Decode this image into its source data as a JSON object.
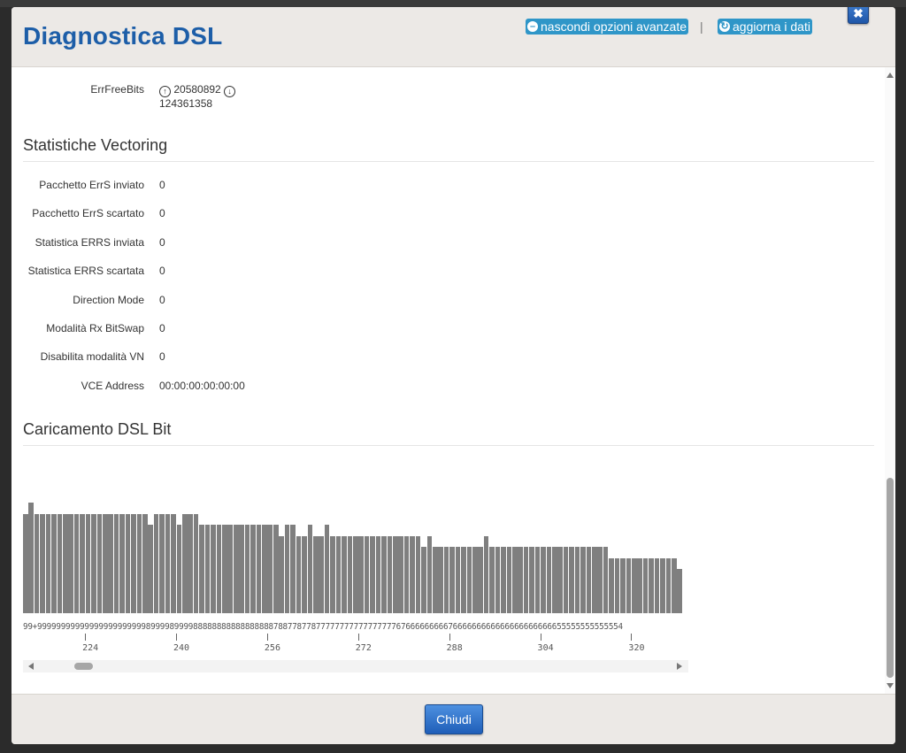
{
  "header": {
    "title": "Diagnostica DSL",
    "advanced_link": "nascondi opzioni avanzate",
    "refresh_link": "aggiorna i dati",
    "separator": "|",
    "close_icon": "✖"
  },
  "errfree": {
    "label": "ErrFreeBits",
    "up_value": "20580892",
    "down_value": "124361358",
    "up_icon": "arrow-up-circle-icon",
    "down_icon": "arrow-down-circle-icon"
  },
  "vectoring": {
    "title": "Statistiche Vectoring",
    "rows": [
      {
        "label": "Pacchetto ErrS inviato",
        "value": "0"
      },
      {
        "label": "Pacchetto ErrS scartato",
        "value": "0"
      },
      {
        "label": "Statistica ERRS inviata",
        "value": "0"
      },
      {
        "label": "Statistica ERRS scartata",
        "value": "0"
      },
      {
        "label": "Direction Mode",
        "value": "0"
      },
      {
        "label": "Modalità Rx BitSwap",
        "value": "0"
      },
      {
        "label": "Disabilita modalità VN",
        "value": "0"
      },
      {
        "label": "VCE Address",
        "value": "00:00:00:00:00:00"
      }
    ]
  },
  "bitload": {
    "title": "Caricamento DSL Bit"
  },
  "chart_data": {
    "type": "bar",
    "first_tone": 219,
    "values": [
      9,
      10,
      9,
      9,
      9,
      9,
      9,
      9,
      9,
      9,
      9,
      9,
      9,
      9,
      9,
      9,
      9,
      9,
      9,
      9,
      9,
      9,
      8,
      9,
      9,
      9,
      9,
      8,
      9,
      9,
      9,
      8,
      8,
      8,
      8,
      8,
      8,
      8,
      8,
      8,
      8,
      8,
      8,
      8,
      8,
      7,
      8,
      8,
      7,
      7,
      8,
      7,
      7,
      8,
      7,
      7,
      7,
      7,
      7,
      7,
      7,
      7,
      7,
      7,
      7,
      7,
      7,
      7,
      7,
      7,
      6,
      7,
      6,
      6,
      6,
      6,
      6,
      6,
      6,
      6,
      6,
      7,
      6,
      6,
      6,
      6,
      6,
      6,
      6,
      6,
      6,
      6,
      6,
      6,
      6,
      6,
      6,
      6,
      6,
      6,
      6,
      6,
      6,
      5,
      5,
      5,
      5,
      5,
      5,
      5,
      5,
      5,
      5,
      5,
      5,
      4
    ],
    "digit_labels": "99+9999999999999999999999989999899998888888888888888878877877877777777777777777676666666667666666666666666666666655555555555554",
    "x_ticks": [
      224,
      240,
      256,
      272,
      288,
      304,
      320
    ],
    "ylim": [
      0,
      15
    ],
    "bar_color": "#7f7f7f"
  },
  "footer": {
    "close_label": "Chiudi"
  }
}
